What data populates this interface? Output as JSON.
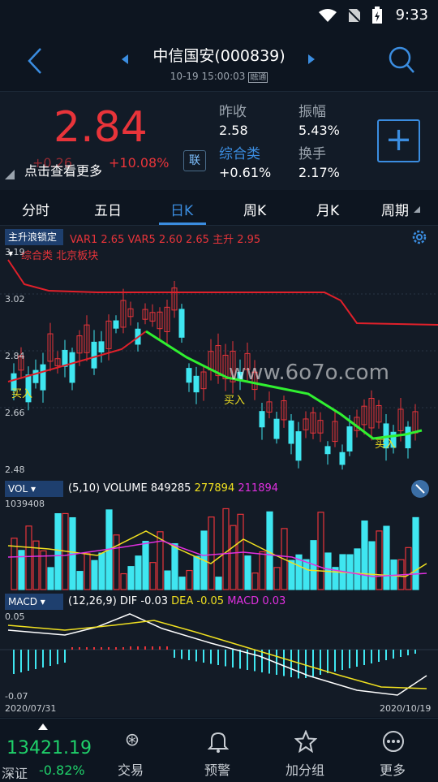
{
  "status": {
    "time": "9:33"
  },
  "header": {
    "title": "中信国安(000839)",
    "subtitle": "10-19 15:00:03",
    "badge": "融通"
  },
  "quote": {
    "price": "2.84",
    "change": "+0.26",
    "change_pct": "+10.08%",
    "more": "点击查看更多",
    "lian": "联",
    "prev_close_label": "昨收",
    "prev_close": "2.58",
    "amplitude_label": "振幅",
    "amplitude": "5.43%",
    "sector_label": "综合类",
    "sector_change": "+0.61%",
    "turnover_label": "换手",
    "turnover": "2.17%"
  },
  "tabs": [
    "分时",
    "五日",
    "日K",
    "周K",
    "月K",
    "周期"
  ],
  "main_chart": {
    "indicator": "主升浪锁定",
    "var1_label": "VAR1",
    "var1": "2.65",
    "var5_label": "VAR5",
    "var5": "2.60",
    "extra": "2.65",
    "zs_label": "主升",
    "zs": "2.95",
    "tags": "综合类 北京板块",
    "y_ticks": [
      "3.19",
      "3.02",
      "2.84",
      "2.66",
      "2.48"
    ],
    "buy": "买入"
  },
  "vol": {
    "name": "VOL",
    "params": "(5,10)",
    "vol_label": "VOLUME",
    "volume": "849285",
    "ma5": "277894",
    "ma10": "211894",
    "max": "1039408"
  },
  "macd": {
    "name": "MACD",
    "params": "(12,26,9)",
    "dif_label": "DIF",
    "dif": "-0.03",
    "dea_label": "DEA",
    "dea": "-0.05",
    "macd_label": "MACD",
    "macd": "0.03",
    "top": "0.05",
    "bottom": "-0.07",
    "date_start": "2020/07/31",
    "date_end": "2020/10/19"
  },
  "bottom": {
    "index_value": "13421.19",
    "index_name": "深证",
    "index_change": "-0.82%",
    "nav": [
      "交易",
      "预警",
      "加分组",
      "更多"
    ]
  },
  "watermark": "www.6o7o.com",
  "colors": {
    "up": "#e8343a",
    "down": "#3fe6f0",
    "accent": "#3b8de0"
  }
}
